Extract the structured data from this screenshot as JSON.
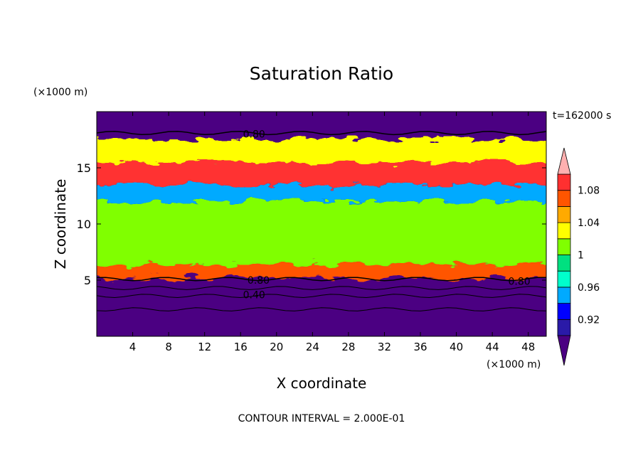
{
  "chart_data": {
    "type": "heatmap",
    "title": "Saturation Ratio",
    "xlabel": "X coordinate",
    "ylabel": "Z coordinate",
    "x_unit": "(×1000 m)",
    "y_unit": "(×1000 m)",
    "time_label": "t=162000 s",
    "footer": "CONTOUR INTERVAL = 2.000E-01",
    "xlim": [
      0,
      50
    ],
    "ylim": [
      0,
      20
    ],
    "x_ticks": [
      4,
      8,
      12,
      16,
      20,
      24,
      28,
      32,
      36,
      40,
      44,
      48
    ],
    "y_ticks": [
      5,
      10,
      15
    ],
    "colorbar": {
      "levels": [
        0.9,
        0.92,
        0.94,
        0.96,
        0.98,
        1.0,
        1.02,
        1.04,
        1.06,
        1.08,
        1.1
      ],
      "tick_labels": [
        "0.92",
        "0.96",
        "1",
        "1.04",
        "1.08"
      ],
      "tick_values": [
        0.92,
        0.96,
        1.0,
        1.04,
        1.08
      ],
      "colors": [
        "#4b0082",
        "#2a1aa8",
        "#0000ff",
        "#00aaff",
        "#00ffcc",
        "#00e080",
        "#80ff00",
        "#ffff00",
        "#ffaa00",
        "#ff5500",
        "#ff3030",
        "#ffb0b0"
      ]
    },
    "field_bands": [
      {
        "z": [
          0,
          5.2
        ],
        "value": 0.5
      },
      {
        "z": [
          5.2,
          6.4
        ],
        "value": 1.06
      },
      {
        "z": [
          6.4,
          12.0
        ],
        "value": 1.0
      },
      {
        "z": [
          12.0,
          13.5
        ],
        "value": 0.95
      },
      {
        "z": [
          13.5,
          15.5
        ],
        "value": 1.08
      },
      {
        "z": [
          15.5,
          17.5
        ],
        "value": 1.02
      },
      {
        "z": [
          17.5,
          20
        ],
        "value": 0.6
      }
    ],
    "contour_labels": [
      {
        "text": "0.80",
        "x": 17.5,
        "z": 18.0
      },
      {
        "text": "0.80",
        "x": 18.0,
        "z": 5.0
      },
      {
        "text": "0.40",
        "x": 17.5,
        "z": 3.7
      },
      {
        "text": "0.80",
        "x": 47.0,
        "z": 4.9
      }
    ]
  }
}
